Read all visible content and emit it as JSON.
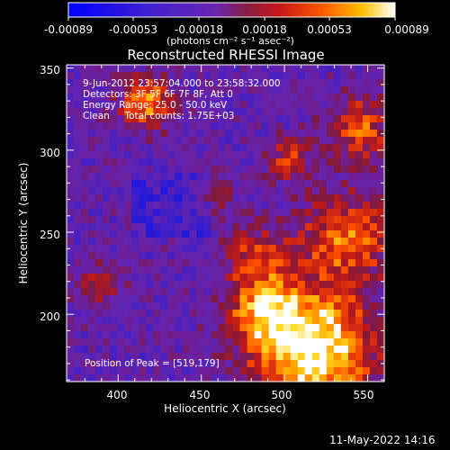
{
  "colorbar": {
    "ticks": [
      "-0.00089",
      "-0.00053",
      "-0.00018",
      "0.00018",
      "0.00053",
      "0.00089"
    ],
    "units": "(photons cm⁻² s⁻¹ asec⁻²)",
    "colors": [
      "#0000ff",
      "#2a18d8",
      "#5a24c0",
      "#7a28a8",
      "#901c50",
      "#c01818",
      "#ff4000",
      "#ff9000",
      "#ffd000",
      "#ffffff"
    ]
  },
  "plot": {
    "title": "Reconstructed RHESSI Image",
    "xlabel": "Heliocentric X (arcsec)",
    "ylabel": "Heliocentric Y (arcsec)",
    "x_ticks": [
      "400",
      "450",
      "500",
      "550"
    ],
    "y_ticks": [
      "350",
      "300",
      "250",
      "200"
    ],
    "xlim": [
      369,
      560
    ],
    "ylim": [
      159,
      352
    ]
  },
  "annotations": {
    "time_range": "9-Jun-2012 23:57:04.000 to 23:58:32.000",
    "detectors": "Detectors: 3F 5F 6F 7F 8F, Att 0",
    "energy": "Energy Range: 25.0 - 50.0 keV",
    "method": "Clean     Total counts: 1.75E+03",
    "peak": "Position of Peak = [519,179]"
  },
  "footer": {
    "timestamp": "11-May-2022 14:16"
  }
}
